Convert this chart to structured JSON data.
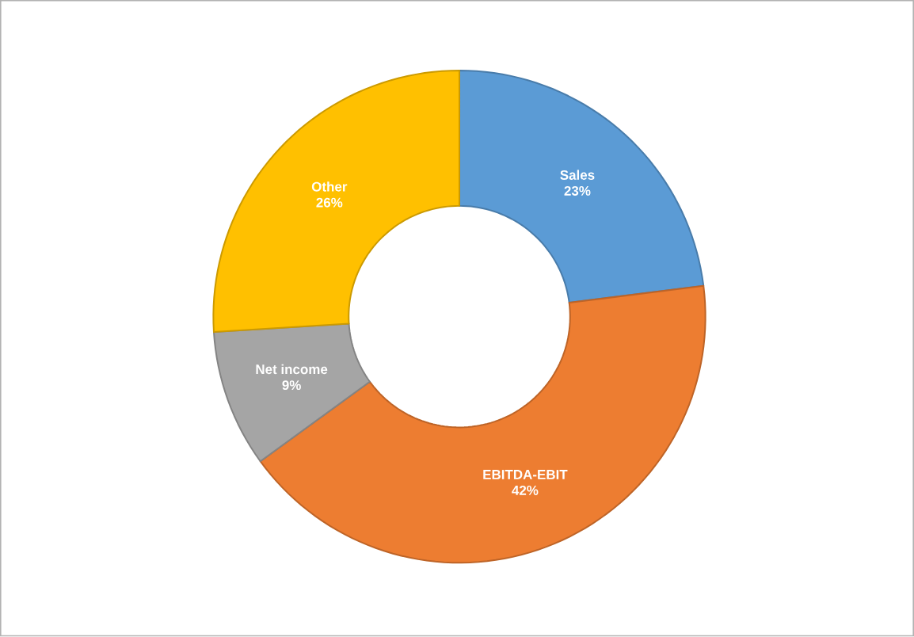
{
  "chart_data": {
    "type": "donut",
    "categories": [
      "Sales",
      "EBITDA-EBIT",
      "Net income",
      "Other"
    ],
    "values": [
      23,
      42,
      9,
      26
    ],
    "value_labels": [
      "23%",
      "42%",
      "9%",
      "26%"
    ],
    "colors": [
      "#5b9bd5",
      "#ed7d31",
      "#a5a5a5",
      "#ffc000"
    ]
  }
}
